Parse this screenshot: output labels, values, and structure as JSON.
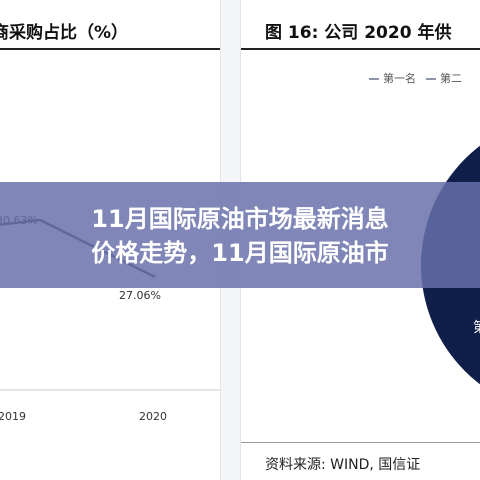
{
  "left_panel": {
    "title": "商采购占比（%）",
    "chart_data": {
      "type": "line",
      "categories": [
        "2019",
        "2020"
      ],
      "values": [
        30.63,
        27.06
      ],
      "point_labels": [
        "30.63%",
        "27.06%"
      ],
      "line_color": "#2b3f66"
    }
  },
  "right_panel": {
    "title": "图 16:  公司 2020 年供",
    "legend": [
      "第一名",
      "第二"
    ],
    "pie_color": "#0f1f4a",
    "pie_label": "第",
    "source": "资料来源:  WIND, 国信证"
  },
  "headline": {
    "line1": "11月国际原油市场最新消息",
    "line2": "价格走势，11月国际原油市"
  }
}
